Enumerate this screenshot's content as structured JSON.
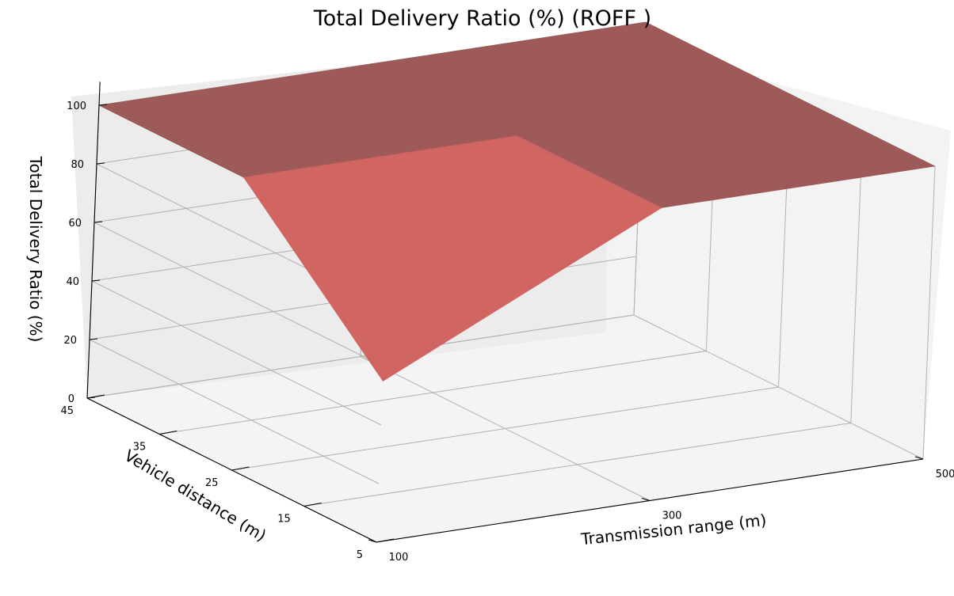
{
  "chart_data": {
    "type": "surface3d",
    "title": "Total Delivery Ratio (%) (ROFF )",
    "xlabel": "Transmission range (m)",
    "ylabel": "Vehicle distance (m)",
    "zlabel": "Total Delivery Ratio (%)",
    "xticks": [
      "100",
      "300",
      "500"
    ],
    "yticks": [
      "5",
      "15",
      "25",
      "35",
      "45"
    ],
    "zticks": [
      "0",
      "20",
      "40",
      "60",
      "80",
      "100"
    ],
    "xlim": [
      100,
      500
    ],
    "ylim": [
      5,
      45
    ],
    "zlim": [
      0,
      100
    ],
    "surface_color": "#c0504d",
    "x": [
      100,
      300,
      500
    ],
    "y": [
      5,
      25,
      45
    ],
    "z": [
      [
        55,
        100,
        100
      ],
      [
        100,
        100,
        100
      ],
      [
        100,
        100,
        100
      ]
    ]
  }
}
